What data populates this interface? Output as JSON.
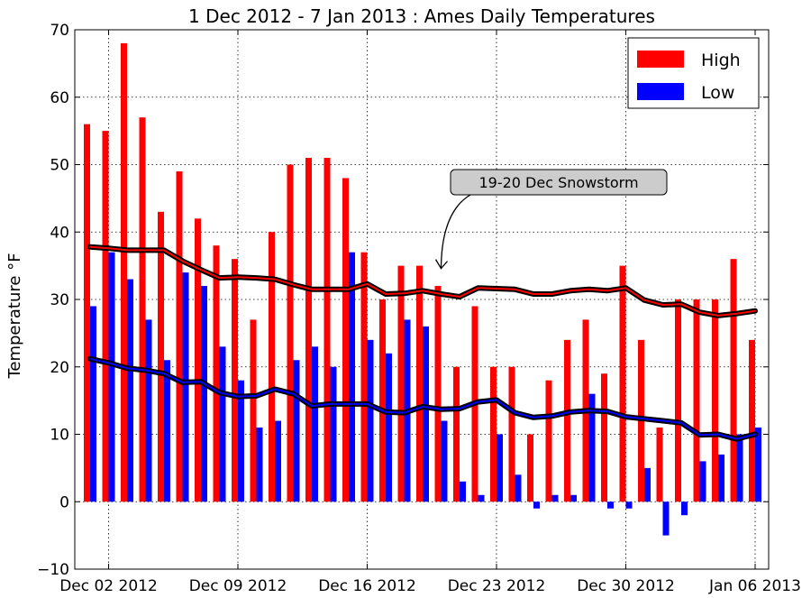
{
  "chart_data": {
    "type": "bar",
    "title": "1 Dec 2012 - 7 Jan 2013 : Ames Daily Temperatures",
    "xlabel": "",
    "ylabel": "Temperature °F",
    "ylim": [
      -10,
      70
    ],
    "yticks": [
      -10,
      0,
      10,
      20,
      30,
      40,
      50,
      60,
      70
    ],
    "start_date": "2012-12-01",
    "x_tick_labels": [
      {
        "day_index": 1,
        "label": "Dec 02 2012"
      },
      {
        "day_index": 8,
        "label": "Dec 09 2012"
      },
      {
        "day_index": 15,
        "label": "Dec 16 2012"
      },
      {
        "day_index": 22,
        "label": "Dec 23 2012"
      },
      {
        "day_index": 29,
        "label": "Dec 30 2012"
      },
      {
        "day_index": 36,
        "label": "Jan 06 2013"
      }
    ],
    "grid": true,
    "legend_position": "top-right",
    "series": [
      {
        "name": "High",
        "color": "#ff0000",
        "values": [
          56,
          55,
          68,
          57,
          43,
          49,
          42,
          38,
          36,
          27,
          40,
          50,
          51,
          51,
          48,
          37,
          30,
          35,
          35,
          32,
          20,
          29,
          20,
          20,
          10,
          18,
          24,
          27,
          19,
          35,
          24,
          11,
          30,
          30,
          30,
          36,
          24
        ]
      },
      {
        "name": "Low",
        "color": "#0000ff",
        "values": [
          29,
          37,
          33,
          27,
          21,
          34,
          32,
          23,
          18,
          11,
          12,
          21,
          23,
          20,
          37,
          24,
          22,
          27,
          26,
          12,
          3,
          1,
          10,
          4,
          -1,
          1,
          1,
          16,
          -1,
          -1,
          5,
          -5,
          -2,
          6,
          7,
          10,
          11
        ]
      }
    ],
    "trend_lines": [
      {
        "color": "#ff0000",
        "values": [
          37.8,
          37.6,
          37.3,
          37.3,
          37.3,
          35.7,
          34.4,
          33.2,
          33.3,
          33.2,
          33.0,
          32.2,
          31.5,
          31.5,
          31.5,
          32.3,
          30.8,
          30.9,
          31.3,
          30.8,
          30.4,
          31.7,
          31.6,
          31.5,
          30.8,
          30.8,
          31.3,
          31.5,
          31.3,
          31.7,
          29.9,
          29.2,
          29.3,
          28.1,
          27.6,
          27.9,
          28.3
        ]
      },
      {
        "color": "#0000ff",
        "values": [
          21.2,
          20.6,
          19.8,
          19.5,
          19.0,
          17.7,
          17.8,
          16.2,
          15.6,
          15.7,
          16.7,
          16.0,
          14.2,
          14.5,
          14.5,
          14.5,
          13.3,
          13.2,
          14.1,
          13.7,
          13.8,
          14.8,
          15.1,
          13.2,
          12.5,
          12.7,
          13.3,
          13.5,
          13.4,
          12.6,
          12.3,
          12.0,
          11.7,
          9.9,
          10.0,
          9.3,
          10.0
        ]
      }
    ],
    "annotations": [
      {
        "text": "19-20 Dec Snowstorm",
        "target_day_index": 19,
        "target_value": 35
      }
    ]
  }
}
